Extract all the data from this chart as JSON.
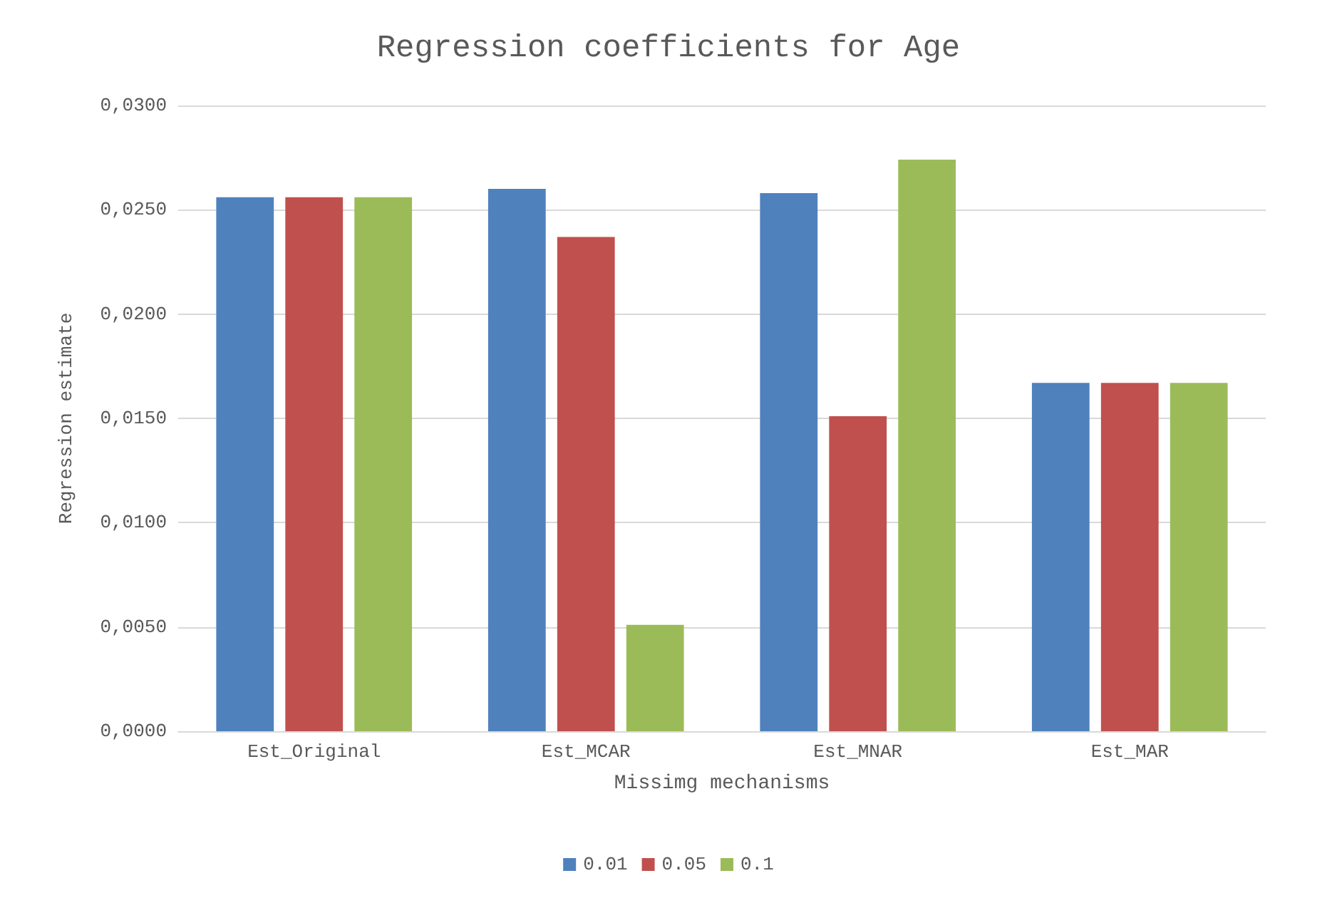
{
  "chart_data": {
    "type": "bar",
    "title": "Regression coefficients for Age",
    "xlabel": "Missimg mechanisms",
    "ylabel": "Regression estimate",
    "categories": [
      "Est_Original",
      "Est_MCAR",
      "Est_MNAR",
      "Est_MAR"
    ],
    "series": [
      {
        "name": "0.01",
        "color": "#4f81bd",
        "values": [
          0.0256,
          0.026,
          0.0258,
          0.0167
        ]
      },
      {
        "name": "0.05",
        "color": "#c0504d",
        "values": [
          0.0256,
          0.0237,
          0.0151,
          0.0167
        ]
      },
      {
        "name": "0.1",
        "color": "#9bbb59",
        "values": [
          0.0256,
          0.0051,
          0.0274,
          0.0167
        ]
      }
    ],
    "ylim": [
      0,
      0.03
    ],
    "yticks": [
      {
        "value": 0,
        "label": "0,0000"
      },
      {
        "value": 0.005,
        "label": "0,0050"
      },
      {
        "value": 0.01,
        "label": "0,0100"
      },
      {
        "value": 0.015,
        "label": "0,0150"
      },
      {
        "value": 0.02,
        "label": "0,0200"
      },
      {
        "value": 0.025,
        "label": "0,0250"
      },
      {
        "value": 0.03,
        "label": "0,0300"
      }
    ],
    "grid": "y",
    "legend": "bottom"
  }
}
